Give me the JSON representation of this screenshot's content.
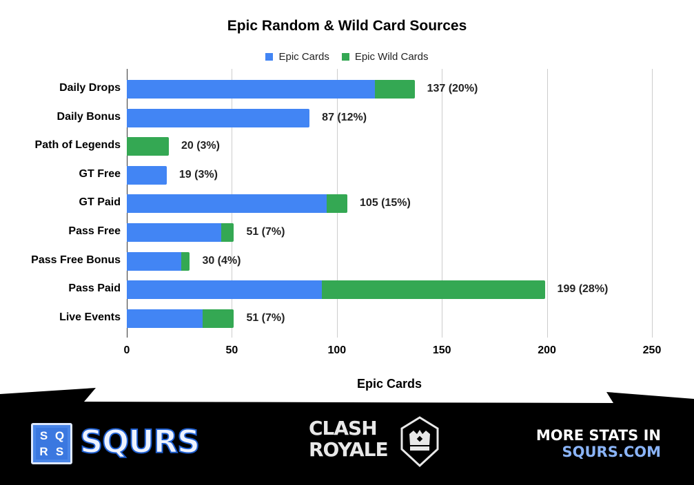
{
  "chart_data": {
    "type": "bar",
    "orientation": "horizontal",
    "stacked": true,
    "title": "Epic Random & Wild Card Sources",
    "xlabel": "Epic Cards",
    "ylabel": "",
    "xlim": [
      0,
      250
    ],
    "xticks": [
      0,
      50,
      100,
      150,
      200,
      250
    ],
    "grid": true,
    "legend_position": "top",
    "categories": [
      "Daily Drops",
      "Daily Bonus",
      "Path of Legends",
      "GT Free",
      "GT Paid",
      "Pass Free",
      "Pass Free Bonus",
      "Pass Paid",
      "Live Events"
    ],
    "series": [
      {
        "name": "Epic Cards",
        "color": "#4285f4",
        "values": [
          118,
          87,
          0,
          19,
          95,
          45,
          26,
          93,
          36
        ]
      },
      {
        "name": "Epic Wild Cards",
        "color": "#34a853",
        "values": [
          19,
          0,
          20,
          0,
          10,
          6,
          4,
          106,
          15
        ]
      }
    ],
    "totals": [
      137,
      87,
      20,
      19,
      105,
      51,
      30,
      199,
      51
    ],
    "data_labels": [
      "137 (20%)",
      "87 (12%)",
      "20 (3%)",
      "19 (3%)",
      "105 (15%)",
      "51 (7%)",
      "30 (4%)",
      "199 (28%)",
      "51 (7%)"
    ]
  },
  "footer": {
    "brand": "SQURS",
    "logo_letters": [
      "S",
      "Q",
      "R",
      "S"
    ],
    "game_logo_line1": "CLASH",
    "game_logo_line2": "ROYALE",
    "cta_line1": "MORE STATS IN",
    "cta_line2": "SQURS.COM"
  }
}
